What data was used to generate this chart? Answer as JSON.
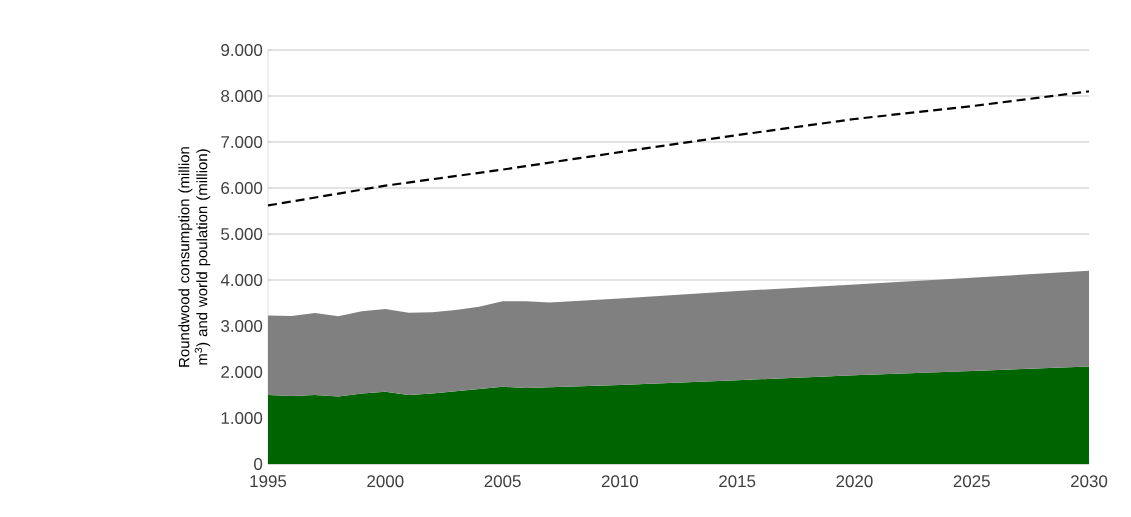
{
  "chart_data": {
    "type": "area",
    "stacked": true,
    "ylabel": "Roundwood consumption (million m$^{3}$) and world poulation (million)",
    "x": [
      1995,
      1996,
      1997,
      1998,
      1999,
      2000,
      2001,
      2002,
      2003,
      2004,
      2005,
      2006,
      2007,
      2010,
      2015,
      2020,
      2025,
      2030
    ],
    "series": [
      {
        "color": "#006400",
        "values": [
          1500,
          1480,
          1500,
          1470,
          1530,
          1570,
          1500,
          1530,
          1580,
          1630,
          1680,
          1650,
          1670,
          1720,
          1820,
          1930,
          2020,
          2120
        ]
      },
      {
        "color": "#808080",
        "values": [
          1730,
          1740,
          1780,
          1740,
          1790,
          1800,
          1790,
          1770,
          1770,
          1790,
          1860,
          1890,
          1840,
          1880,
          1940,
          1970,
          2030,
          2080
        ]
      },
      {
        "type": "line",
        "color": "#000000",
        "line_style": "dashed",
        "x": [
          1995,
          2000,
          2005,
          2010,
          2015,
          2020,
          2025,
          2030
        ],
        "values": [
          5620,
          6050,
          6400,
          6780,
          7150,
          7500,
          7780,
          8100
        ]
      }
    ],
    "xlim": [
      1995,
      2030
    ],
    "xticks": [
      1995,
      2000,
      2005,
      2010,
      2015,
      2020,
      2025,
      2030
    ],
    "ylim": [
      0,
      9000
    ],
    "yticks": [
      {
        "value": 0,
        "label": "0"
      },
      {
        "value": 1000,
        "label": "1.000"
      },
      {
        "value": 2000,
        "label": "2.000"
      },
      {
        "value": 3000,
        "label": "3.000"
      },
      {
        "value": 4000,
        "label": "4.000"
      },
      {
        "value": 5000,
        "label": "5.000"
      },
      {
        "value": 6000,
        "label": "6.000"
      },
      {
        "value": 7000,
        "label": "7.000"
      },
      {
        "value": 8000,
        "label": "8.000"
      },
      {
        "value": 9000,
        "label": "9.000"
      }
    ],
    "grid": "y"
  }
}
